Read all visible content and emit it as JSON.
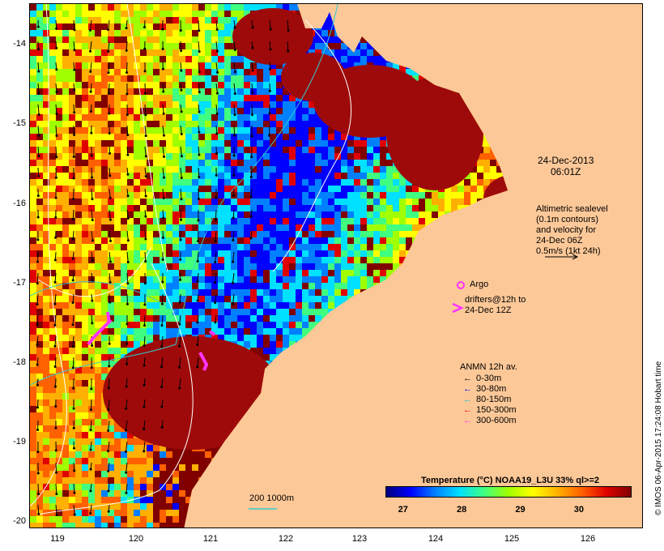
{
  "map": {
    "date_label": "24-Dec-2013",
    "time_label": "06:01Z",
    "sealevel_note": [
      "Altimetric sealevel",
      "(0.1m contours)",
      "and velocity for",
      "24-Dec 06Z",
      "0.5m/s (1kt 24h)"
    ],
    "argo_label": "Argo",
    "drifter_label": [
      "drifters@12h to",
      "24-Dec 12Z"
    ],
    "isobath_label": "200  1000m",
    "credit": "© IMOS 06-Apr-2015 17:24:08 Hobart time",
    "lat_ticks": [
      "-14",
      "-15",
      "-16",
      "-17",
      "-18",
      "-19",
      "-20"
    ],
    "lon_ticks": [
      "119",
      "120",
      "121",
      "122",
      "123",
      "124",
      "125",
      "126"
    ],
    "colors": {
      "land": "#fdc898",
      "sea_hot": "#9e0a0a",
      "contour": "#ffffff",
      "isobath": "#33cccc",
      "arrow": "#000000",
      "argo": "#ff33ff"
    }
  },
  "anmn_legend": {
    "title": "ANMN 12h av.",
    "items": [
      {
        "label": "0-30m",
        "color": "#000000"
      },
      {
        "label": "30-80m",
        "color": "#0000ff"
      },
      {
        "label": "80-150m",
        "color": "#00cccc"
      },
      {
        "label": "150-300m",
        "color": "#ff0000"
      },
      {
        "label": "300-600m",
        "color": "#ff33ff"
      }
    ]
  },
  "colorbar": {
    "title": "Temperature (°C) NOAA19_L3U 33% ql>=2",
    "min": 26.7,
    "max": 30.9,
    "ticks": [
      "27",
      "28",
      "29",
      "30"
    ],
    "stops": [
      "#00007f",
      "#0000ff",
      "#0080ff",
      "#00e0ff",
      "#40ff80",
      "#a0ff00",
      "#ffff00",
      "#ffb000",
      "#ff6000",
      "#e00000",
      "#800000"
    ]
  }
}
